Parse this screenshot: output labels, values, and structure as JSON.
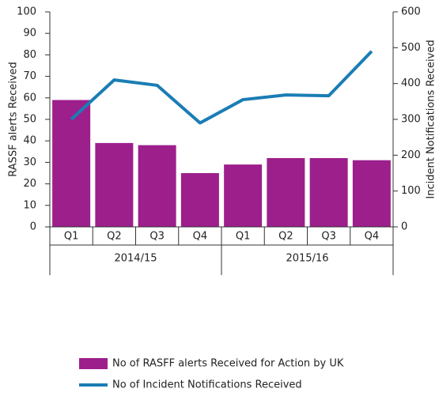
{
  "chart_data": {
    "type": "bar_line",
    "categories": [
      "Q1",
      "Q2",
      "Q3",
      "Q4",
      "Q1",
      "Q2",
      "Q3",
      "Q4"
    ],
    "groups": [
      "2014/15",
      "2015/16"
    ],
    "series": [
      {
        "name": "No of RASFF alerts Received for Action by UK",
        "type": "bar",
        "color": "#9c1f8c",
        "values": [
          59,
          39,
          38,
          25,
          29,
          32,
          32,
          31
        ]
      },
      {
        "name": "No of Incident Notifications Received",
        "type": "line",
        "axis": "y2",
        "color": "#1a7db5",
        "values": [
          300,
          410,
          395,
          290,
          355,
          368,
          366,
          490
        ]
      }
    ],
    "ylabel": "RASSF alerts Received",
    "y2label": "Incident Notifications Received",
    "ylim": [
      0,
      100
    ],
    "yticks": [
      0,
      10,
      20,
      30,
      40,
      50,
      60,
      70,
      80,
      90,
      100
    ],
    "y2lim": [
      0,
      600
    ],
    "y2ticks": [
      0,
      100,
      200,
      300,
      400,
      500,
      600
    ]
  }
}
